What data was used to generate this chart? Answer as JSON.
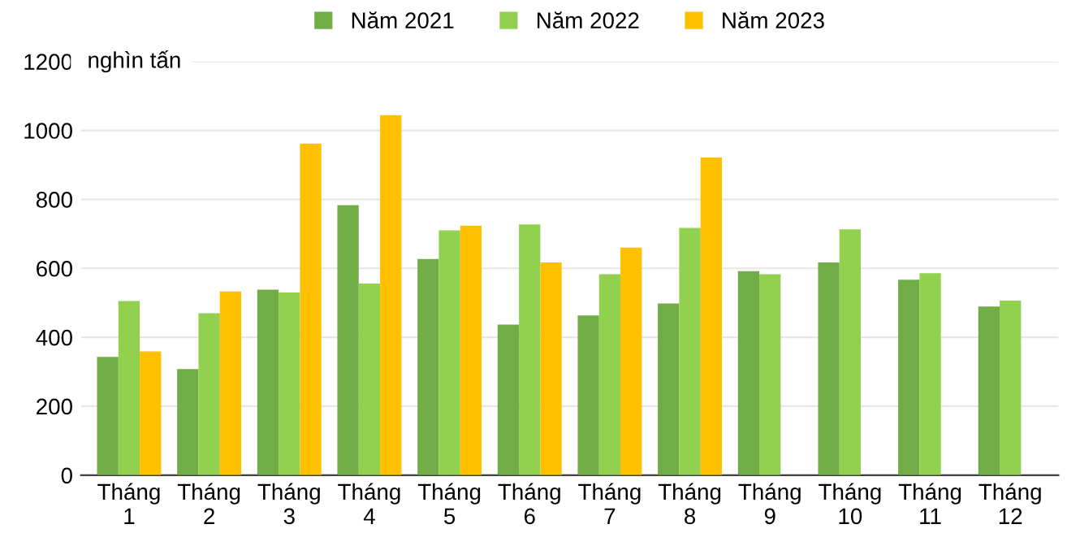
{
  "chart_data": {
    "type": "bar",
    "ylabel": "nghìn tấn",
    "categories": [
      "Tháng\n1",
      "Tháng\n2",
      "Tháng\n3",
      "Tháng\n4",
      "Tháng\n5",
      "Tháng\n6",
      "Tháng\n7",
      "Tháng\n8",
      "Tháng\n9",
      "Tháng\n10",
      "Tháng\n11",
      "Tháng\n12"
    ],
    "series": [
      {
        "name": "Năm 2021",
        "color": "#70ad47",
        "values": [
          343,
          308,
          538,
          783,
          627,
          437,
          463,
          498,
          592,
          617,
          567,
          489
        ]
      },
      {
        "name": "Năm 2022",
        "color": "#92d050",
        "values": [
          505,
          470,
          530,
          556,
          710,
          727,
          583,
          717,
          583,
          713,
          586,
          506
        ]
      },
      {
        "name": "Năm 2023",
        "color": "#ffc000",
        "values": [
          359,
          533,
          962,
          1044,
          724,
          617,
          660,
          922,
          null,
          null,
          null,
          null
        ]
      }
    ],
    "ylim": [
      0,
      1200
    ],
    "yticks": [
      0,
      200,
      400,
      600,
      800,
      1000,
      1200
    ],
    "grid": "y",
    "legend": "top"
  }
}
